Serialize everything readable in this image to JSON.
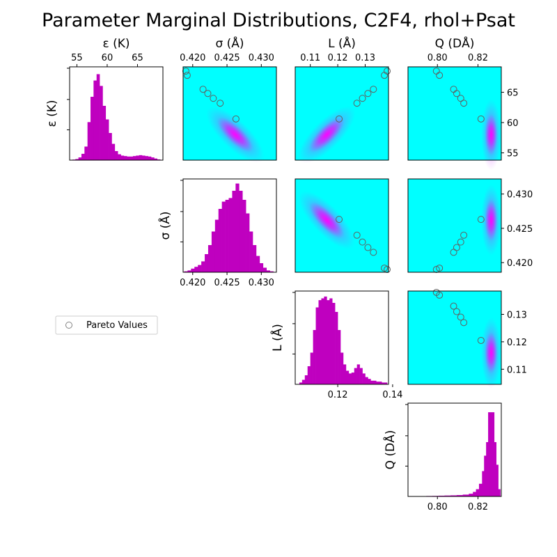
{
  "chart_data": {
    "type": "corner_plot",
    "title": "Parameter Marginal Distributions, C2F4, rhol+Psat",
    "parameters": [
      {
        "key": "eps",
        "label": "ε (K)",
        "range": [
          53.8,
          69.2
        ],
        "ticks": [
          55,
          60,
          65
        ],
        "tick_labels": [
          "55",
          "60",
          "65"
        ]
      },
      {
        "key": "sigma",
        "label": "σ (Å)",
        "range": [
          0.4186,
          0.4322
        ],
        "ticks": [
          0.42,
          0.425,
          0.43
        ],
        "tick_labels": [
          "0.420",
          "0.425",
          "0.430"
        ]
      },
      {
        "key": "L",
        "label": "L (Å)",
        "range": [
          0.1045,
          0.1385
        ],
        "ticks": [
          0.11,
          0.12,
          0.13
        ],
        "tick_labels": [
          "0.11",
          "0.12",
          "0.13"
        ]
      },
      {
        "key": "Q",
        "label": "Q (DÅ)",
        "range": [
          0.7855,
          0.8315
        ],
        "ticks": [
          0.8,
          0.82
        ],
        "tick_labels": [
          "0.80",
          "0.82"
        ]
      }
    ],
    "diag_xticks": {
      "sigma": {
        "ticks": [
          0.42,
          0.425,
          0.43
        ],
        "labels": [
          "0.420",
          "0.425",
          "0.430"
        ]
      },
      "L": {
        "ticks": [
          0.12,
          0.14
        ],
        "labels": [
          "0.12",
          "0.14"
        ]
      },
      "Q": {
        "ticks": [
          0.8,
          0.82
        ],
        "labels": [
          "0.80",
          "0.82"
        ]
      }
    },
    "histograms": {
      "eps": [
        [
          54.5,
          0.006
        ],
        [
          55.0,
          0.012
        ],
        [
          55.5,
          0.03
        ],
        [
          56.0,
          0.07
        ],
        [
          56.5,
          0.15
        ],
        [
          57.0,
          0.42
        ],
        [
          57.5,
          0.7
        ],
        [
          58.0,
          0.88
        ],
        [
          58.5,
          0.95
        ],
        [
          59.0,
          0.82
        ],
        [
          59.5,
          0.6
        ],
        [
          60.0,
          0.45
        ],
        [
          60.5,
          0.3
        ],
        [
          61.0,
          0.18
        ],
        [
          61.5,
          0.1
        ],
        [
          62.0,
          0.065
        ],
        [
          62.5,
          0.05
        ],
        [
          63.0,
          0.045
        ],
        [
          63.5,
          0.04
        ],
        [
          64.0,
          0.04
        ],
        [
          64.5,
          0.045
        ],
        [
          65.0,
          0.05
        ],
        [
          65.5,
          0.055
        ],
        [
          66.0,
          0.05
        ],
        [
          66.5,
          0.045
        ],
        [
          67.0,
          0.04
        ],
        [
          67.5,
          0.03
        ],
        [
          68.0,
          0.018
        ],
        [
          68.5,
          0.008
        ]
      ],
      "sigma": [
        [
          0.419,
          0.01
        ],
        [
          0.4195,
          0.02
        ],
        [
          0.42,
          0.04
        ],
        [
          0.4205,
          0.06
        ],
        [
          0.421,
          0.08
        ],
        [
          0.4215,
          0.12
        ],
        [
          0.422,
          0.2
        ],
        [
          0.4225,
          0.3
        ],
        [
          0.423,
          0.45
        ],
        [
          0.4235,
          0.58
        ],
        [
          0.424,
          0.7
        ],
        [
          0.4245,
          0.78
        ],
        [
          0.425,
          0.8
        ],
        [
          0.4255,
          0.82
        ],
        [
          0.426,
          0.9
        ],
        [
          0.4265,
          0.98
        ],
        [
          0.427,
          0.9
        ],
        [
          0.4275,
          0.8
        ],
        [
          0.428,
          0.65
        ],
        [
          0.4285,
          0.45
        ],
        [
          0.429,
          0.3
        ],
        [
          0.4295,
          0.18
        ],
        [
          0.43,
          0.1
        ],
        [
          0.4305,
          0.05
        ],
        [
          0.431,
          0.02
        ],
        [
          0.4315,
          0.01
        ]
      ],
      "L": [
        [
          0.1065,
          0.02
        ],
        [
          0.1075,
          0.05
        ],
        [
          0.1085,
          0.1
        ],
        [
          0.1095,
          0.2
        ],
        [
          0.1105,
          0.35
        ],
        [
          0.1115,
          0.6
        ],
        [
          0.1125,
          0.85
        ],
        [
          0.1135,
          0.93
        ],
        [
          0.1145,
          0.95
        ],
        [
          0.1155,
          0.97
        ],
        [
          0.1165,
          0.93
        ],
        [
          0.1175,
          0.95
        ],
        [
          0.1185,
          0.9
        ],
        [
          0.1195,
          0.8
        ],
        [
          0.1205,
          0.6
        ],
        [
          0.1215,
          0.35
        ],
        [
          0.1225,
          0.22
        ],
        [
          0.1235,
          0.15
        ],
        [
          0.1245,
          0.12
        ],
        [
          0.1255,
          0.13
        ],
        [
          0.1265,
          0.18
        ],
        [
          0.1275,
          0.22
        ],
        [
          0.1285,
          0.18
        ],
        [
          0.1295,
          0.12
        ],
        [
          0.1305,
          0.08
        ],
        [
          0.1315,
          0.06
        ],
        [
          0.1325,
          0.04
        ],
        [
          0.1335,
          0.04
        ],
        [
          0.1345,
          0.03
        ],
        [
          0.1355,
          0.03
        ],
        [
          0.1365,
          0.02
        ],
        [
          0.1375,
          0.02
        ]
      ],
      "Q": [
        [
          0.796,
          0.005
        ],
        [
          0.799,
          0.006
        ],
        [
          0.802,
          0.008
        ],
        [
          0.805,
          0.01
        ],
        [
          0.808,
          0.012
        ],
        [
          0.811,
          0.015
        ],
        [
          0.814,
          0.02
        ],
        [
          0.817,
          0.03
        ],
        [
          0.819,
          0.05
        ],
        [
          0.8205,
          0.08
        ],
        [
          0.822,
          0.14
        ],
        [
          0.8235,
          0.28
        ],
        [
          0.8245,
          0.45
        ],
        [
          0.8255,
          0.6
        ],
        [
          0.8265,
          0.93
        ],
        [
          0.8275,
          0.6
        ],
        [
          0.8285,
          0.35
        ],
        [
          0.8295,
          0.08
        ]
      ]
    },
    "pareto_points": [
      {
        "eps": 68.5,
        "sigma": 0.419,
        "L": 0.138,
        "Q": 0.7995
      },
      {
        "eps": 67.8,
        "sigma": 0.4192,
        "L": 0.137,
        "Q": 0.801
      },
      {
        "eps": 65.5,
        "sigma": 0.4215,
        "L": 0.133,
        "Q": 0.808
      },
      {
        "eps": 64.8,
        "sigma": 0.4222,
        "L": 0.131,
        "Q": 0.8095
      },
      {
        "eps": 64.0,
        "sigma": 0.423,
        "L": 0.129,
        "Q": 0.8115
      },
      {
        "eps": 63.2,
        "sigma": 0.424,
        "L": 0.127,
        "Q": 0.813
      },
      {
        "eps": 60.6,
        "sigma": 0.4263,
        "L": 0.1205,
        "Q": 0.8215
      }
    ],
    "density_centers": [
      {
        "eps": 58.0,
        "sigma": 0.4262,
        "L": 0.116,
        "Q": 0.8265
      }
    ],
    "legend": {
      "label": "Pareto Values",
      "placement": "left-middle"
    },
    "colors": {
      "hist": "#bf00bf",
      "bg": "#00ffff",
      "density": "#ff00ff",
      "marker": "#808080"
    }
  }
}
